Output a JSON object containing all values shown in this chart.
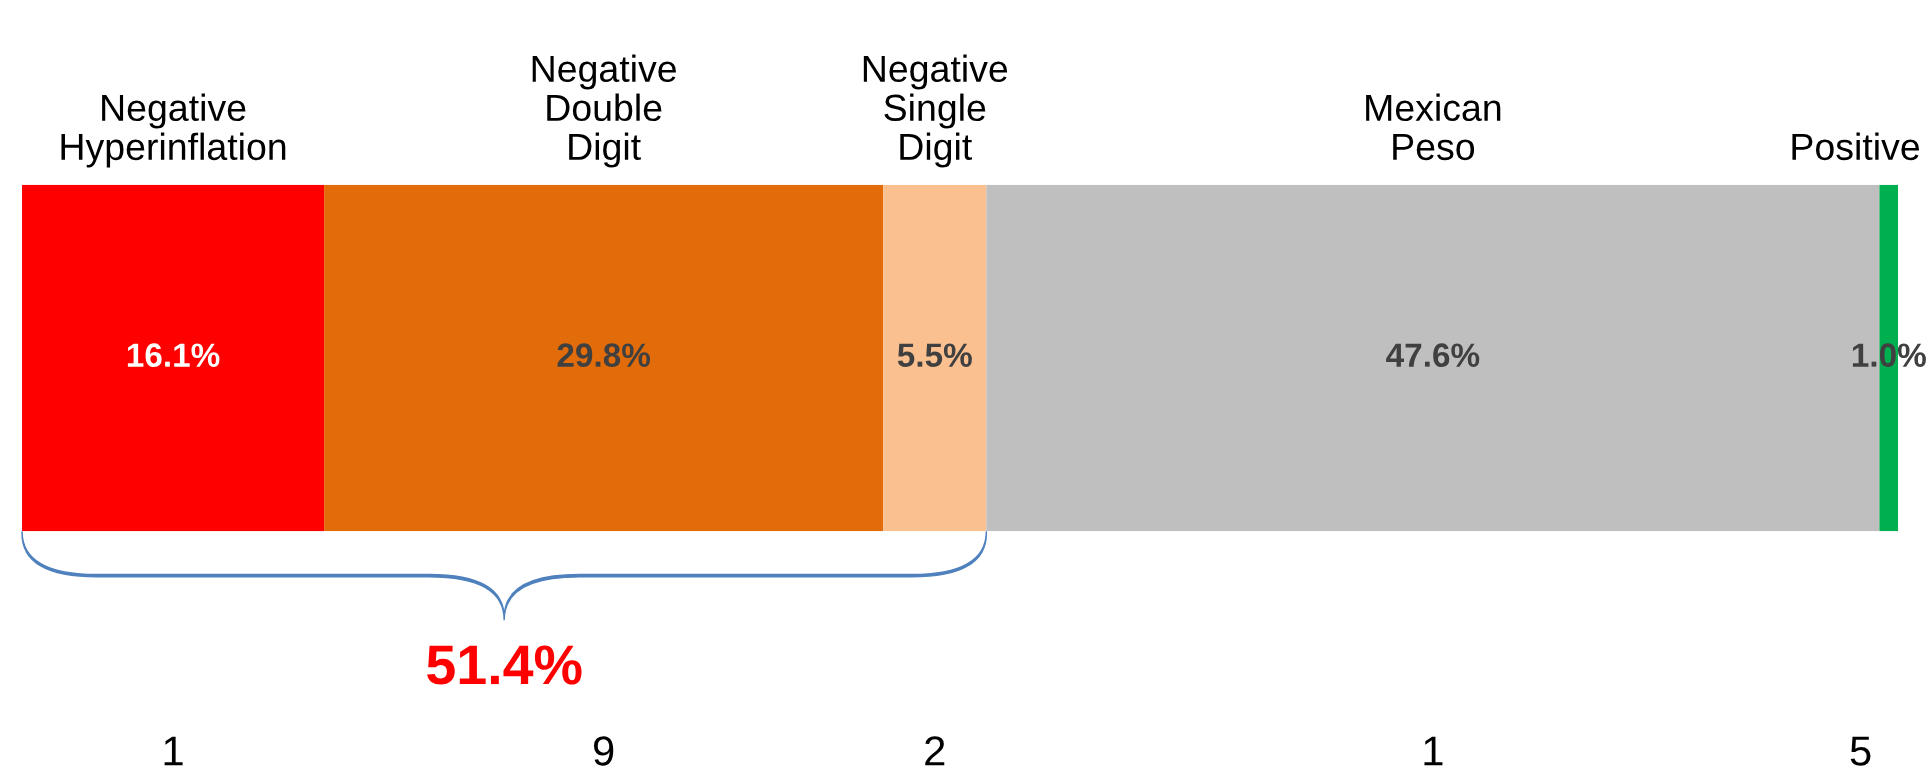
{
  "chart_data": {
    "type": "bar",
    "orientation": "horizontal",
    "stacked": true,
    "categories": [
      null
    ],
    "tick_labels": false,
    "series": [
      {
        "name": "Negative Hyperinflation",
        "color": "#ff0000",
        "values": [
          16.1
        ],
        "value_labels": [
          "16.1%"
        ]
      },
      {
        "name": "Negative Double Digit",
        "color": "#e36c0a",
        "values": [
          29.8
        ],
        "value_labels": [
          "29.8%"
        ]
      },
      {
        "name": "Negative Single Digit",
        "color": "#fac090",
        "values": [
          5.5
        ],
        "value_labels": [
          "5.5%"
        ]
      },
      {
        "name": "Mexican Peso",
        "color": "#bfbfbf",
        "values": [
          47.6
        ],
        "value_labels": [
          "47.6%"
        ]
      },
      {
        "name": "Positive",
        "color": "#00b050",
        "values": [
          1.0
        ],
        "value_labels": [
          "1.0%"
        ]
      }
    ],
    "annotations": [
      "51.4%",
      "1",
      "9",
      "2",
      "1",
      "5"
    ]
  }
}
